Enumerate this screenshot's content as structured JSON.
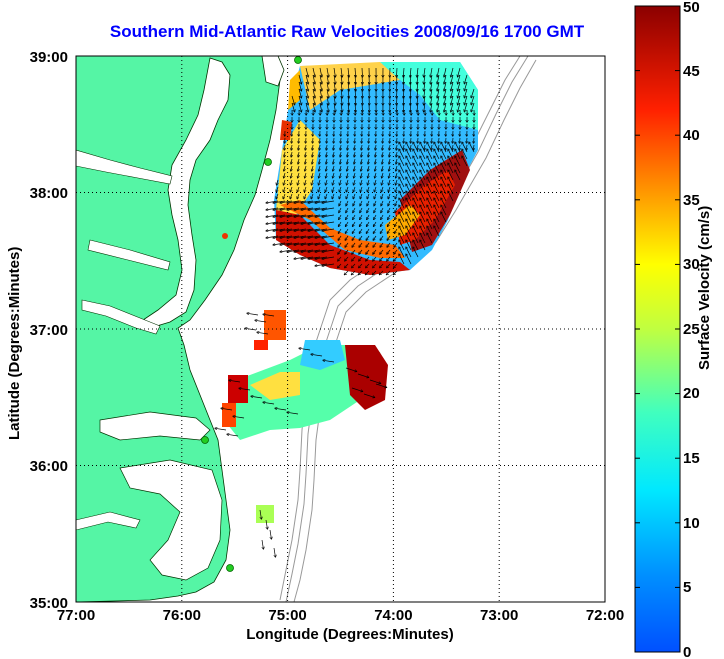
{
  "title": "Southern Mid-Atlantic Raw Velocities 2008/09/16 1700 GMT",
  "x_label": "Longitude (Degrees:Minutes)",
  "y_label": "Latitude (Degrees:Minutes)",
  "colorbar_label": "Surface Velocity (cm/s)",
  "x_ticks": [
    "77:00",
    "76:00",
    "75:00",
    "74:00",
    "73:00",
    "72:00"
  ],
  "y_ticks": [
    "39:00",
    "38:00",
    "37:00",
    "36:00",
    "35:00"
  ],
  "colorbar_ticks": [
    "0",
    "5",
    "10",
    "15",
    "20",
    "25",
    "30",
    "35",
    "40",
    "45",
    "50"
  ],
  "map": {
    "lon_range": [
      -77,
      -72
    ],
    "lat_range": [
      35,
      39
    ],
    "grid": "dotted",
    "land_color": "#55f5a5",
    "water_color": "#ffffff",
    "bathymetry_color": "#999999",
    "station_color": "#22cc22",
    "arrow_color": "#000000",
    "colormap": "jet",
    "velocity_range_cm_s": [
      0,
      50
    ]
  }
}
